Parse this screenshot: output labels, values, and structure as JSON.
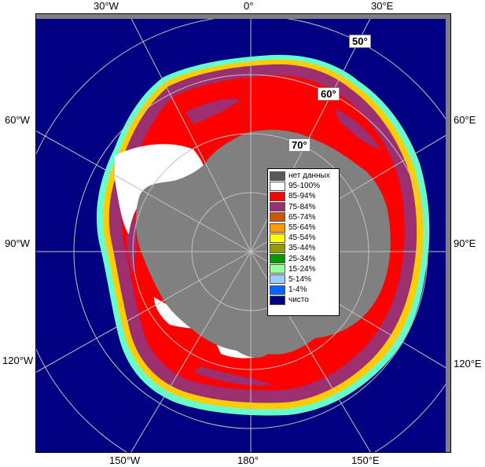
{
  "map": {
    "lon_labels": {
      "top_left": "30°W",
      "top_center": "0°",
      "top_right": "30°E",
      "left_upper": "60°W",
      "left_middle": "90°W",
      "left_lower": "120°W",
      "right_upper": "60°E",
      "right_middle": "90°E",
      "right_lower": "120°E",
      "bottom_left": "150°W",
      "bottom_center": "180°",
      "bottom_right": "150°E"
    },
    "lat_labels": [
      "50°",
      "60°",
      "70°"
    ]
  },
  "legend": {
    "items": [
      {
        "label": "нет данных",
        "color": "#595959"
      },
      {
        "label": "95-100%",
        "color": "#ffffff"
      },
      {
        "label": "85-94%",
        "color": "#ff0000"
      },
      {
        "label": "75-84%",
        "color": "#9c2f6f"
      },
      {
        "label": "65-74%",
        "color": "#cc5500"
      },
      {
        "label": "55-64%",
        "color": "#ff9900"
      },
      {
        "label": "45-54%",
        "color": "#ffff00"
      },
      {
        "label": "35-44%",
        "color": "#999900"
      },
      {
        "label": "25-34%",
        "color": "#009900"
      },
      {
        "label": "15-24%",
        "color": "#99ff99"
      },
      {
        "label": "5-14%",
        "color": "#99ccff"
      },
      {
        "label": "1-4%",
        "color": "#0066ff"
      },
      {
        "label": "чисто",
        "color": "#000080"
      }
    ]
  },
  "colors": {
    "ocean": "#000080",
    "land": "#808080",
    "ice_high": "#ff0000",
    "ice_mid": "#9c2f6f",
    "ice_full": "#ffffff",
    "grid": "#c0c0c0"
  }
}
